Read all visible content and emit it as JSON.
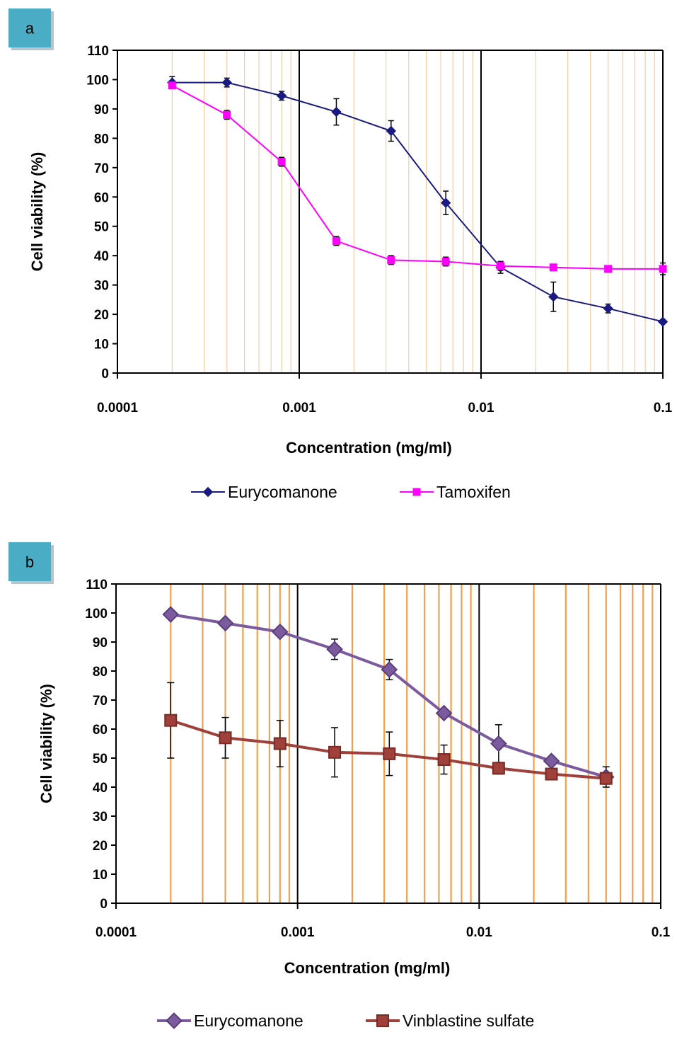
{
  "chart_data": [
    {
      "panel_label": "a",
      "type": "line",
      "xscale": "log",
      "xlabel": "Concentration (mg/ml)",
      "ylabel": "Cell viability (%)",
      "xlim": [
        0.0001,
        0.1
      ],
      "ylim": [
        0,
        110
      ],
      "x_ticks": [
        "0.0001",
        "0.001",
        "0.01",
        "0.1"
      ],
      "y_ticks": [
        "0",
        "10",
        "20",
        "30",
        "40",
        "50",
        "60",
        "70",
        "80",
        "90",
        "100",
        "110"
      ],
      "grid": "vertical minor lines (orange)",
      "legend_position": "bottom",
      "colors": {
        "grid": "#f5c89a",
        "major": "#000000"
      },
      "series": [
        {
          "name": "Eurycomanone",
          "color": "#1a1a80",
          "marker": "diamond",
          "x": [
            0.0002,
            0.0004,
            0.0008,
            0.0016,
            0.0032,
            0.0064,
            0.0128,
            0.025,
            0.05,
            0.1
          ],
          "y": [
            99,
            99,
            94.5,
            89,
            82.5,
            58,
            36,
            26,
            22,
            17.5
          ],
          "err": [
            2,
            1.5,
            1.5,
            4.5,
            3.5,
            4,
            2,
            5,
            1.5,
            0.5
          ]
        },
        {
          "name": "Tamoxifen",
          "color": "#ff00ff",
          "marker": "square",
          "x": [
            0.0002,
            0.0004,
            0.0008,
            0.0016,
            0.0032,
            0.0064,
            0.0128,
            0.025,
            0.05,
            0.1
          ],
          "y": [
            98,
            88,
            72,
            45,
            38.5,
            38,
            36.5,
            36,
            35.5,
            35.5
          ],
          "err": [
            1,
            1.5,
            1.5,
            1.5,
            1.5,
            1.5,
            1.5,
            1,
            1,
            2
          ]
        }
      ]
    },
    {
      "panel_label": "b",
      "type": "line",
      "xscale": "log",
      "xlabel": "Concentration (mg/ml)",
      "ylabel": "Cell viability (%)",
      "xlim": [
        0.0001,
        0.1
      ],
      "ylim": [
        0,
        110
      ],
      "x_ticks": [
        "0.0001",
        "0.001",
        "0.01",
        "0.1"
      ],
      "y_ticks": [
        "0",
        "10",
        "20",
        "30",
        "40",
        "50",
        "60",
        "70",
        "80",
        "90",
        "100",
        "110"
      ],
      "grid": "vertical minor lines (orange)",
      "legend_position": "bottom",
      "colors": {
        "grid": "#f0a050",
        "major": "#000000"
      },
      "series": [
        {
          "name": "Eurycomanone",
          "color": "#7b5a9e",
          "marker": "diamond",
          "x": [
            0.0002,
            0.0004,
            0.0008,
            0.0016,
            0.0032,
            0.0064,
            0.0128,
            0.025,
            0.05
          ],
          "y": [
            99.5,
            96.5,
            93.5,
            87.5,
            80.5,
            65.5,
            55,
            49,
            43.5
          ],
          "err": [
            1,
            1.5,
            1.5,
            3.5,
            3.5,
            1,
            6.5,
            1,
            3.5
          ]
        },
        {
          "name": "Vinblastine sulfate",
          "color": "#a0403a",
          "marker": "square",
          "x": [
            0.0002,
            0.0004,
            0.0008,
            0.0016,
            0.0032,
            0.0064,
            0.0128,
            0.025,
            0.05
          ],
          "y": [
            63,
            57,
            55,
            52,
            51.5,
            49.5,
            46.5,
            44.5,
            43
          ],
          "err": [
            13,
            7,
            8,
            8.5,
            7.5,
            5,
            2,
            1.5,
            2
          ]
        }
      ]
    }
  ]
}
